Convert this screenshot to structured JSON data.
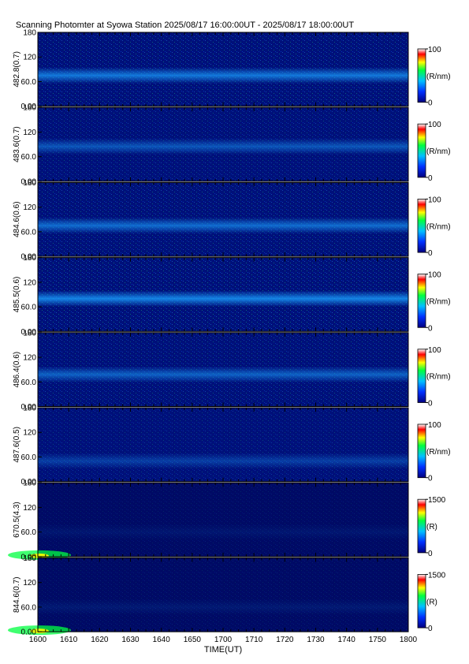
{
  "title": "Scanning Photomter at Syowa Station 2025/08/17 16:00:00UT - 2025/08/17 18:00:00UT",
  "xlabel": "TIME(UT)",
  "colors": {
    "low": "#000080",
    "mid1": "#0050ff",
    "mid2": "#00ff00",
    "mid3": "#ffff00",
    "high": "#ff0000",
    "top": "#ffffff"
  },
  "chart_data": {
    "type": "heatmap",
    "x_ticks": [
      "1600",
      "1610",
      "1620",
      "1630",
      "1640",
      "1650",
      "1700",
      "1710",
      "1720",
      "1730",
      "1740",
      "1750",
      "1800"
    ],
    "y_ticks": [
      "0.00",
      "60.0",
      "120",
      "180"
    ],
    "ylim": [
      0,
      180
    ],
    "xlim": [
      "1600",
      "1800"
    ],
    "panels": [
      {
        "ylabel": "482.8(0.7)",
        "unit": "(R/nm)",
        "cmax": "100",
        "cmin": "0",
        "band_center": 75,
        "band_strength": 0.45
      },
      {
        "ylabel": "483.6(0.7)",
        "unit": "(R/nm)",
        "cmax": "100",
        "cmin": "0",
        "band_center": 85,
        "band_strength": 0.3
      },
      {
        "ylabel": "484.6(0.6)",
        "unit": "(R/nm)",
        "cmax": "100",
        "cmin": "0",
        "band_center": 75,
        "band_strength": 0.4
      },
      {
        "ylabel": "485.5(0.6)",
        "unit": "(R/nm)",
        "cmax": "100",
        "cmin": "0",
        "band_center": 80,
        "band_strength": 0.5
      },
      {
        "ylabel": "486.4(0.6)",
        "unit": "(R/nm)",
        "cmax": "100",
        "cmin": "0",
        "band_center": 78,
        "band_strength": 0.35
      },
      {
        "ylabel": "487.6(0.5)",
        "unit": "(R/nm)",
        "cmax": "100",
        "cmin": "0",
        "band_center": 50,
        "band_strength": 0.2
      },
      {
        "ylabel": "670.5(4.3)",
        "unit": "(R)",
        "cmax": "1500",
        "cmin": "0",
        "band_center": 60,
        "band_strength": 0.08
      },
      {
        "ylabel": "844.6(0.7)",
        "unit": "(R)",
        "cmax": "1500",
        "cmin": "0",
        "band_center": 60,
        "band_strength": 0.1
      }
    ]
  }
}
